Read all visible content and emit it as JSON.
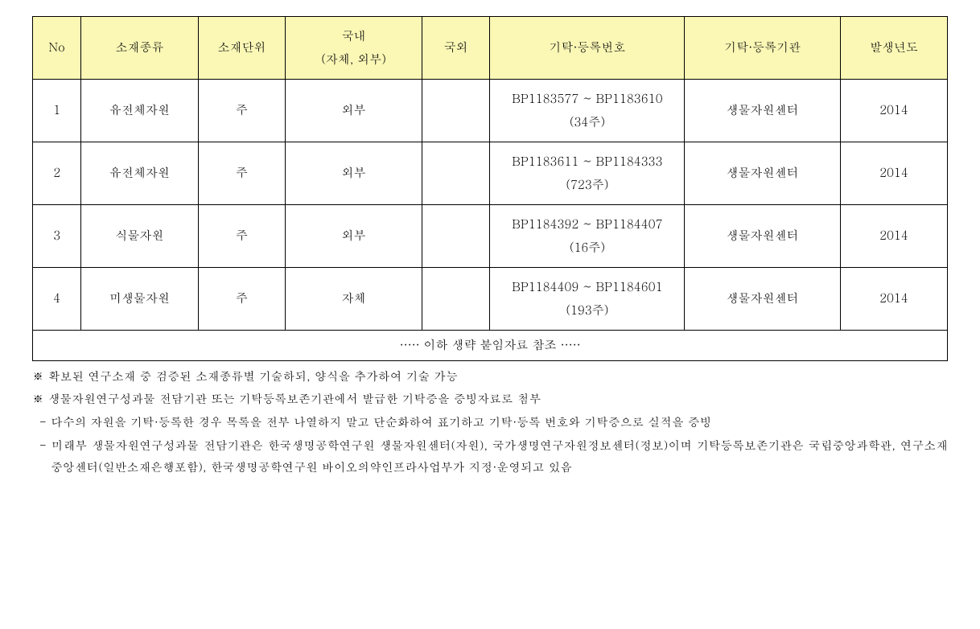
{
  "table": {
    "header_bg": "#fbf8b6",
    "border_color": "#000000",
    "columns": [
      {
        "key": "no",
        "label": "No"
      },
      {
        "key": "type",
        "label": "소재종류"
      },
      {
        "key": "unit",
        "label": "소재단위"
      },
      {
        "key": "dom",
        "label": "국내\n(자체, 외부)"
      },
      {
        "key": "for",
        "label": "국외"
      },
      {
        "key": "reg",
        "label": "기탁·등록번호"
      },
      {
        "key": "org",
        "label": "기탁·등록기관"
      },
      {
        "key": "year",
        "label": "발생년도"
      }
    ],
    "rows": [
      {
        "no": "1",
        "type": "유전체자원",
        "unit": "주",
        "dom": "외부",
        "for": "",
        "reg": "BP1183577 ~ BP1183610 (34주)",
        "org": "생물자원센터",
        "year": "2014"
      },
      {
        "no": "2",
        "type": "유전체자원",
        "unit": "주",
        "dom": "외부",
        "for": "",
        "reg": "BP1183611 ~ BP1184333 (723주)",
        "org": "생물자원센터",
        "year": "2014"
      },
      {
        "no": "3",
        "type": "식물자원",
        "unit": "주",
        "dom": "외부",
        "for": "",
        "reg": "BP1184392 ~ BP1184407 (16주)",
        "org": "생물자원센터",
        "year": "2014"
      },
      {
        "no": "4",
        "type": "미생물자원",
        "unit": "주",
        "dom": "자체",
        "for": "",
        "reg": "BP1184409 ~ BP1184601 (193주)",
        "org": "생물자원센터",
        "year": "2014"
      }
    ],
    "footer": "····· 이하 생략 붙임자료 참조 ·····"
  },
  "notes": {
    "star1": "※  확보된 연구소재 중 검증된 소재종류별 기술하되, 양식을 추가하여 기술 가능",
    "star2": "※  생물자원연구성과물 전담기관 또는 기탁등록보존기관에서 발급한 기탁증을 증빙자료로 첨부",
    "dash1": "-  다수의 자원을 기탁·등록한 경우 목록을 전부 나열하지 말고 단순화하여 표기하고 기탁·등록 번호와 기탁증으로 실적을 증빙",
    "dash2": "-  미래부 생물자원연구성과물 전담기관은 한국생명공학연구원 생물자원센터(자원), 국가생명연구자원정보센터(정보)이며 기탁등록보존기관은 국립중앙과학관, 연구소재중앙센터(일반소재은행포함), 한국생명공학연구원 바이오의약인프라사업부가 지정·운영되고 있음"
  }
}
